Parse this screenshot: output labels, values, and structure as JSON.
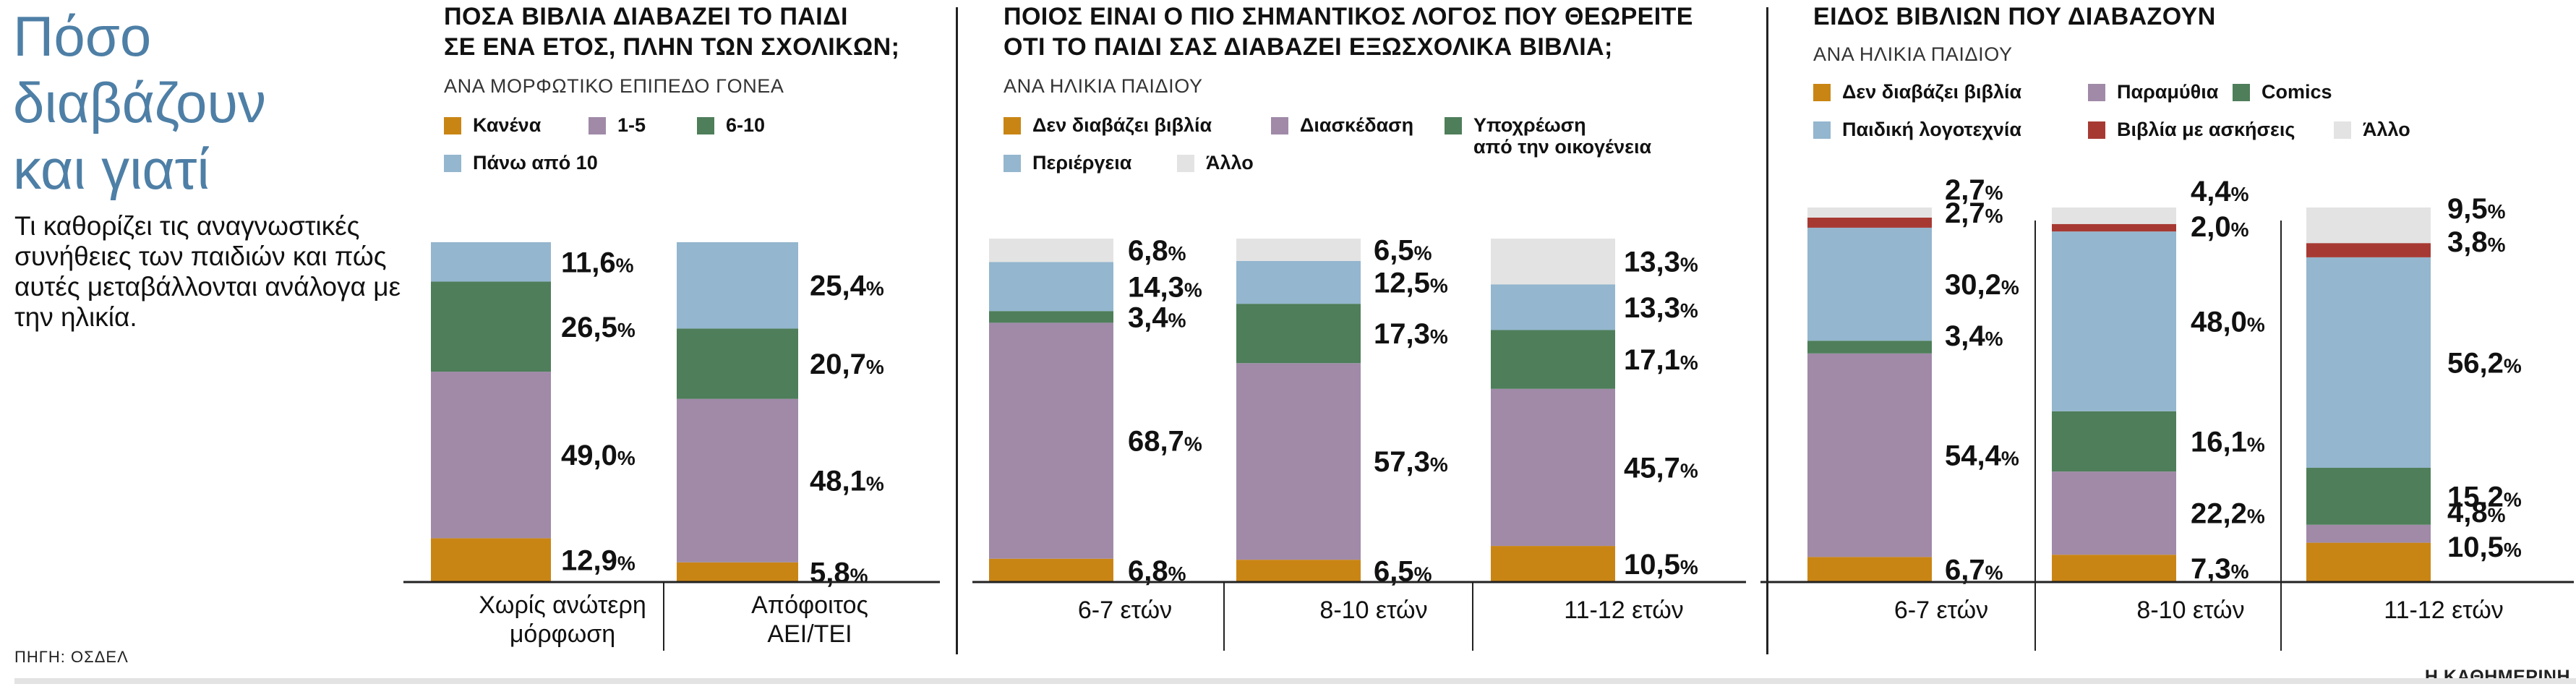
{
  "page": {
    "title_lines": [
      "Πόσο",
      "διαβάζουν",
      "και γιατί"
    ],
    "intro": "Τι καθορίζει τις αναγνωστικές συνήθειες των παιδιών και πώς αυτές μεταβάλλονται ανάλογα με την ηλικία.",
    "source": "ΠΗΓΗ: ΟΣΔΕΛ",
    "publisher": "Η ΚΑΘΗΜΕΡΙΝΗ"
  },
  "colors": {
    "orange": "#c98514",
    "purple": "#a08aa8",
    "green": "#4e7e5a",
    "lightblue": "#94b6ce",
    "red": "#a63a33",
    "gray": "#e3e3e3",
    "title_blue": "#4e7fa6"
  },
  "chart_data": [
    {
      "type": "bar",
      "stacked": true,
      "title_lines": [
        "ΠΟΣΑ ΒΙΒΛΙΑ ΔΙΑΒΑΖΕΙ ΤΟ ΠΑΙΔΙ",
        "ΣΕ ΕΝΑ ΕΤΟΣ, ΠΛΗΝ ΤΩΝ ΣΧΟΛΙΚΩΝ;"
      ],
      "subtitle": "ΑΝΑ ΜΟΡΦΩΤΙΚΟ ΕΠΙΠΕΔΟ ΓΟΝΕΑ",
      "categories": [
        [
          "Χωρίς ανώτερη",
          "μόρφωση"
        ],
        [
          "Απόφοιτος",
          "ΑΕΙ/ΤΕΙ"
        ]
      ],
      "value_suffix": "%",
      "ylim": [
        0,
        100
      ],
      "series": [
        {
          "name": [
            "Κανένα"
          ],
          "color": "#c98514",
          "values": [
            12.9,
            5.8
          ],
          "labels": [
            "12,9",
            "5,8"
          ]
        },
        {
          "name": [
            "1-5"
          ],
          "color": "#a08aa8",
          "values": [
            49.0,
            48.1
          ],
          "labels": [
            "49,0",
            "48,1"
          ]
        },
        {
          "name": [
            "6-10"
          ],
          "color": "#4e7e5a",
          "values": [
            26.5,
            20.7
          ],
          "labels": [
            "26,5",
            "20,7"
          ]
        },
        {
          "name": [
            "Πάνω από 10"
          ],
          "color": "#94b6ce",
          "values": [
            11.6,
            25.4
          ],
          "labels": [
            "11,6",
            "25,4"
          ]
        }
      ]
    },
    {
      "type": "bar",
      "stacked": true,
      "title_lines": [
        "ΠΟΙΟΣ ΕΙΝΑΙ Ο ΠΙΟ ΣΗΜΑΝΤΙΚΟΣ ΛΟΓΟΣ ΠΟΥ ΘΕΩΡΕΙΤΕ",
        "ΟΤΙ ΤΟ ΠΑΙΔΙ ΣΑΣ ΔΙΑΒΑΖΕΙ ΕΞΩΣΧΟΛΙΚΑ ΒΙΒΛΙΑ;"
      ],
      "subtitle": "ΑΝΑ ΗΛΙΚΙΑ ΠΑΙΔΙΟΥ",
      "categories": [
        [
          "6-7 ετών"
        ],
        [
          "8-10 ετών"
        ],
        [
          "11-12 ετών"
        ]
      ],
      "value_suffix": "%",
      "ylim": [
        0,
        100
      ],
      "series": [
        {
          "name": [
            "Δεν διαβάζει βιβλία"
          ],
          "color": "#c98514",
          "values": [
            6.8,
            6.5,
            10.5
          ],
          "labels": [
            "6,8",
            "6,5",
            "10,5"
          ]
        },
        {
          "name": [
            "Διασκέδαση"
          ],
          "color": "#a08aa8",
          "values": [
            68.7,
            57.3,
            45.7
          ],
          "labels": [
            "68,7",
            "57,3",
            "45,7"
          ]
        },
        {
          "name": [
            "Υποχρέωση",
            "από την οικογένεια"
          ],
          "color": "#4e7e5a",
          "values": [
            3.4,
            17.3,
            17.1
          ],
          "labels": [
            "3,4",
            "17,3",
            "17,1"
          ]
        },
        {
          "name": [
            "Περιέργεια"
          ],
          "color": "#94b6ce",
          "values": [
            14.3,
            12.5,
            13.3
          ],
          "labels": [
            "14,3",
            "12,5",
            "13,3"
          ]
        },
        {
          "name": [
            "Άλλο"
          ],
          "color": "#e3e3e3",
          "values": [
            6.8,
            6.5,
            13.3
          ],
          "labels": [
            "6,8",
            "6,5",
            "13,3"
          ]
        }
      ]
    },
    {
      "type": "bar",
      "stacked": true,
      "title_lines": [
        "ΕΙΔΟΣ ΒΙΒΛΙΩΝ ΠΟΥ ΔΙΑΒΑΖΟΥΝ"
      ],
      "subtitle": "ΑΝΑ ΗΛΙΚΙΑ ΠΑΙΔΙΟΥ",
      "categories": [
        [
          "6-7 ετών"
        ],
        [
          "8-10 ετών"
        ],
        [
          "11-12 ετών"
        ]
      ],
      "value_suffix": "%",
      "ylim": [
        0,
        100
      ],
      "series": [
        {
          "name": [
            "Δεν διαβάζει βιβλία"
          ],
          "color": "#c98514",
          "values": [
            6.7,
            7.3,
            10.5
          ],
          "labels": [
            "6,7",
            "7,3",
            "10,5"
          ]
        },
        {
          "name": [
            "Παραμύθια"
          ],
          "color": "#a08aa8",
          "values": [
            54.4,
            22.2,
            4.8
          ],
          "labels": [
            "54,4",
            "22,2",
            "4,8"
          ]
        },
        {
          "name": [
            "Comics"
          ],
          "color": "#4e7e5a",
          "values": [
            3.4,
            16.1,
            15.2
          ],
          "labels": [
            "3,4",
            "16,1",
            "15,2"
          ]
        },
        {
          "name": [
            "Παιδική λογοτεχνία"
          ],
          "color": "#94b6ce",
          "values": [
            30.2,
            48.0,
            56.2
          ],
          "labels": [
            "30,2",
            "48,0",
            "56,2"
          ]
        },
        {
          "name": [
            "Βιβλία με ασκήσεις"
          ],
          "color": "#a63a33",
          "values": [
            2.7,
            2.0,
            3.8
          ],
          "labels": [
            "2,7",
            "2,0",
            "3,8"
          ]
        },
        {
          "name": [
            "Άλλο"
          ],
          "color": "#e3e3e3",
          "values": [
            2.7,
            4.4,
            9.5
          ],
          "labels": [
            "2,7",
            "4,4",
            "9,5"
          ]
        }
      ]
    }
  ]
}
